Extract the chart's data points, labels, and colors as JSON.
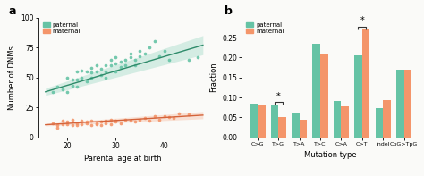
{
  "panel_a": {
    "paternal_x": [
      17,
      18,
      19,
      20,
      20,
      21,
      21,
      22,
      22,
      22,
      23,
      23,
      24,
      24,
      25,
      25,
      25,
      26,
      26,
      27,
      27,
      28,
      28,
      28,
      29,
      29,
      30,
      30,
      30,
      31,
      31,
      32,
      32,
      33,
      33,
      34,
      34,
      35,
      35,
      36,
      37,
      38,
      39,
      40,
      41,
      45,
      47
    ],
    "paternal_y": [
      38,
      42,
      40,
      50,
      38,
      48,
      43,
      55,
      48,
      42,
      50,
      56,
      55,
      47,
      58,
      50,
      54,
      60,
      55,
      57,
      52,
      60,
      55,
      50,
      60,
      65,
      62,
      67,
      55,
      63,
      59,
      65,
      60,
      67,
      70,
      65,
      60,
      72,
      68,
      70,
      75,
      80,
      68,
      72,
      65,
      65,
      67
    ],
    "maternal_x": [
      17,
      18,
      18,
      19,
      19,
      20,
      20,
      21,
      21,
      22,
      22,
      23,
      23,
      24,
      24,
      25,
      25,
      26,
      26,
      27,
      27,
      28,
      28,
      29,
      29,
      30,
      30,
      31,
      32,
      33,
      34,
      35,
      36,
      37,
      38,
      39,
      40,
      41,
      42,
      43,
      45
    ],
    "maternal_y": [
      12,
      10,
      8,
      14,
      11,
      11,
      13,
      10,
      15,
      12,
      10,
      14,
      11,
      13,
      12,
      10,
      14,
      12,
      11,
      13,
      10,
      14,
      12,
      15,
      11,
      13,
      14,
      12,
      15,
      14,
      13,
      15,
      16,
      14,
      18,
      15,
      18,
      17,
      16,
      20,
      19
    ],
    "paternal_line_x": [
      15.5,
      48
    ],
    "paternal_line_y": [
      38.0,
      77.0
    ],
    "maternal_line_x": [
      15.5,
      48
    ],
    "maternal_line_y": [
      10.5,
      18.5
    ],
    "paternal_ci_lower": [
      34.0,
      71.0
    ],
    "paternal_ci_upper": [
      42.0,
      83.0
    ],
    "maternal_ci_lower": [
      9.0,
      16.5
    ],
    "maternal_ci_upper": [
      12.0,
      20.5
    ],
    "paternal_color": "#65c3a5",
    "maternal_color": "#f4956a",
    "paternal_line_color": "#2e8b6a",
    "maternal_line_color": "#d4633a",
    "xlabel": "Parental age at birth",
    "ylabel": "Number of DNMs",
    "xlim": [
      14,
      49
    ],
    "ylim": [
      0,
      100
    ],
    "yticks": [
      0,
      25,
      50,
      75,
      100
    ],
    "xticks": [
      20,
      30,
      40
    ]
  },
  "panel_b": {
    "categories": [
      "C>G",
      "T>G",
      "T>A",
      "T>C",
      "C>A",
      "C>T",
      "indel",
      "CpG>TpG"
    ],
    "paternal": [
      0.084,
      0.079,
      0.06,
      0.235,
      0.091,
      0.205,
      0.074,
      0.17
    ],
    "maternal": [
      0.079,
      0.05,
      0.043,
      0.208,
      0.077,
      0.27,
      0.093,
      0.17
    ],
    "paternal_color": "#65c3a5",
    "maternal_color": "#f4956a",
    "ylabel": "Fraction",
    "xlabel": "Mutation type",
    "ylim": [
      0,
      0.3
    ],
    "yticks": [
      0.0,
      0.05,
      0.1,
      0.15,
      0.2,
      0.25
    ],
    "bracket_tg_y": 0.088,
    "bracket_ct_y": 0.278,
    "sig_tg_idx": 1,
    "sig_ct_idx": 5
  },
  "bg_color": "#fafaf8"
}
